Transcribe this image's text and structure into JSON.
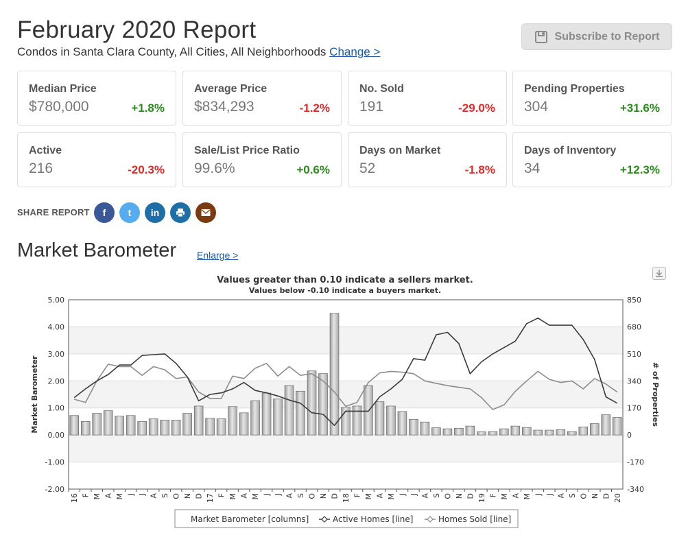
{
  "header": {
    "title": "February 2020 Report",
    "subtitle": "Condos in Santa Clara County, All Cities, All Neighborhoods",
    "change_link": "Change >",
    "subscribe_label": "Subscribe to Report"
  },
  "stats": [
    {
      "label": "Median Price",
      "value": "$780,000",
      "change": "+1.8%"
    },
    {
      "label": "Average Price",
      "value": "$834,293",
      "change": "-1.2%"
    },
    {
      "label": "No. Sold",
      "value": "191",
      "change": "-29.0%"
    },
    {
      "label": "Pending Properties",
      "value": "304",
      "change": "+31.6%"
    },
    {
      "label": "Active",
      "value": "216",
      "change": "-20.3%"
    },
    {
      "label": "Sale/List Price Ratio",
      "value": "99.6%",
      "change": "+0.6%"
    },
    {
      "label": "Days on Market",
      "value": "52",
      "change": "-1.8%"
    },
    {
      "label": "Days of Inventory",
      "value": "34",
      "change": "+12.3%"
    }
  ],
  "share": {
    "label": "SHARE REPORT",
    "buttons": [
      {
        "icon": "facebook-icon",
        "glyph": "f",
        "color": "#3b5998"
      },
      {
        "icon": "twitter-icon",
        "glyph": "t",
        "color": "#55acee"
      },
      {
        "icon": "linkedin-icon",
        "glyph": "in",
        "color": "#1e6fa8"
      },
      {
        "icon": "print-icon",
        "glyph": "",
        "color": "#1e6fa8"
      },
      {
        "icon": "email-icon",
        "glyph": "",
        "color": "#7b3a10"
      }
    ]
  },
  "section": {
    "title": "Market Barometer",
    "enlarge_link": "Enlarge >"
  },
  "colors": {
    "positive": "#2b8a1e",
    "negative": "#e02b2b",
    "link": "#1a5aa6"
  },
  "chart_data": {
    "type": "bar",
    "title": "Values greater than 0.10 indicate a sellers market.",
    "subtitle": "Values below -0.10 indicate a buyers market.",
    "ylabel": "Market Barometer",
    "y2label": "# of Properties",
    "ylim": [
      -2,
      5
    ],
    "y2lim": [
      -340,
      850
    ],
    "yticks": [
      "5.00",
      "4.00",
      "3.00",
      "2.00",
      "1.00",
      "0.00",
      "-1.00",
      "-2.00"
    ],
    "y2ticks": [
      "850",
      "680",
      "510",
      "340",
      "170",
      "0",
      "-170",
      "-340"
    ],
    "x": [
      "16",
      "F",
      "M",
      "A",
      "M",
      "J",
      "J",
      "A",
      "S",
      "O",
      "N",
      "D",
      "17",
      "F",
      "M",
      "A",
      "M",
      "J",
      "J",
      "A",
      "S",
      "O",
      "N",
      "D",
      "18",
      "F",
      "M",
      "A",
      "M",
      "J",
      "J",
      "A",
      "S",
      "O",
      "N",
      "D",
      "19",
      "F",
      "M",
      "A",
      "M",
      "J",
      "J",
      "A",
      "S",
      "O",
      "N",
      "D",
      "20"
    ],
    "legend": [
      "Market Barometer [columns]",
      "Active Homes [line]",
      "Homes Sold [line]"
    ],
    "legend_position": "bottom",
    "series": [
      {
        "name": "Market Barometer",
        "type": "columns",
        "axis": "left",
        "values": [
          0.72,
          0.5,
          0.8,
          0.9,
          0.7,
          0.72,
          0.5,
          0.6,
          0.55,
          0.55,
          0.8,
          1.07,
          0.62,
          0.6,
          1.05,
          0.82,
          1.27,
          1.55,
          1.33,
          1.83,
          1.62,
          2.37,
          2.27,
          4.5,
          1.02,
          1.07,
          1.83,
          1.23,
          1.07,
          0.87,
          0.58,
          0.48,
          0.27,
          0.23,
          0.25,
          0.33,
          0.12,
          0.13,
          0.23,
          0.33,
          0.28,
          0.18,
          0.18,
          0.2,
          0.13,
          0.3,
          0.42,
          0.75,
          0.65
        ]
      },
      {
        "name": "Active Homes",
        "type": "line",
        "axis": "right",
        "values": [
          235,
          290,
          340,
          380,
          440,
          440,
          500,
          505,
          510,
          450,
          365,
          215,
          255,
          265,
          290,
          330,
          280,
          265,
          245,
          220,
          200,
          140,
          130,
          60,
          150,
          150,
          150,
          240,
          290,
          350,
          480,
          470,
          630,
          645,
          575,
          385,
          460,
          510,
          550,
          590,
          700,
          735,
          690,
          690,
          690,
          600,
          475,
          240,
          200
        ]
      },
      {
        "name": "Homes Sold",
        "type": "line",
        "axis": "right",
        "values": [
          225,
          205,
          340,
          445,
          430,
          430,
          375,
          430,
          410,
          355,
          365,
          270,
          230,
          230,
          370,
          355,
          420,
          450,
          370,
          430,
          375,
          385,
          340,
          270,
          180,
          205,
          330,
          390,
          400,
          395,
          385,
          340,
          325,
          310,
          300,
          290,
          235,
          160,
          190,
          275,
          340,
          400,
          350,
          330,
          340,
          290,
          355,
          320,
          270
        ]
      }
    ]
  }
}
